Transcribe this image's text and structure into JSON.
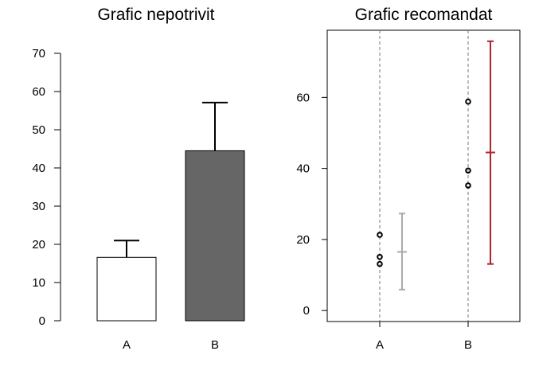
{
  "chart_data": [
    {
      "type": "bar",
      "title": "Grafic nepotrivit",
      "categories": [
        "A",
        "B"
      ],
      "values": [
        16.6,
        44.5
      ],
      "error_upper": [
        21.0,
        57.1
      ],
      "bar_colors": [
        "#ffffff",
        "#666666"
      ],
      "yticks": [
        0,
        10,
        20,
        30,
        40,
        50,
        60,
        70
      ],
      "ylim": [
        0,
        70
      ],
      "grid": false
    },
    {
      "type": "scatter",
      "title": "Grafic recomandat",
      "categories": [
        "A",
        "B"
      ],
      "points": [
        {
          "group": "A",
          "y": 21.3
        },
        {
          "group": "A",
          "y": 15.1
        },
        {
          "group": "A",
          "y": 13.1
        },
        {
          "group": "B",
          "y": 58.8
        },
        {
          "group": "B",
          "y": 39.4
        },
        {
          "group": "B",
          "y": 35.2
        }
      ],
      "intervals": [
        {
          "group": "A",
          "mean": 16.5,
          "low": 5.9,
          "high": 27.3,
          "color": "#aaaaaa"
        },
        {
          "group": "B",
          "mean": 44.5,
          "low": 13.1,
          "high": 75.8,
          "color": "#b2222d"
        }
      ],
      "yticks": [
        0,
        20,
        40,
        60
      ],
      "ylim": [
        -3.1,
        78.9
      ],
      "grid": false,
      "vertical_reference_lines": "dashed at each category"
    }
  ]
}
